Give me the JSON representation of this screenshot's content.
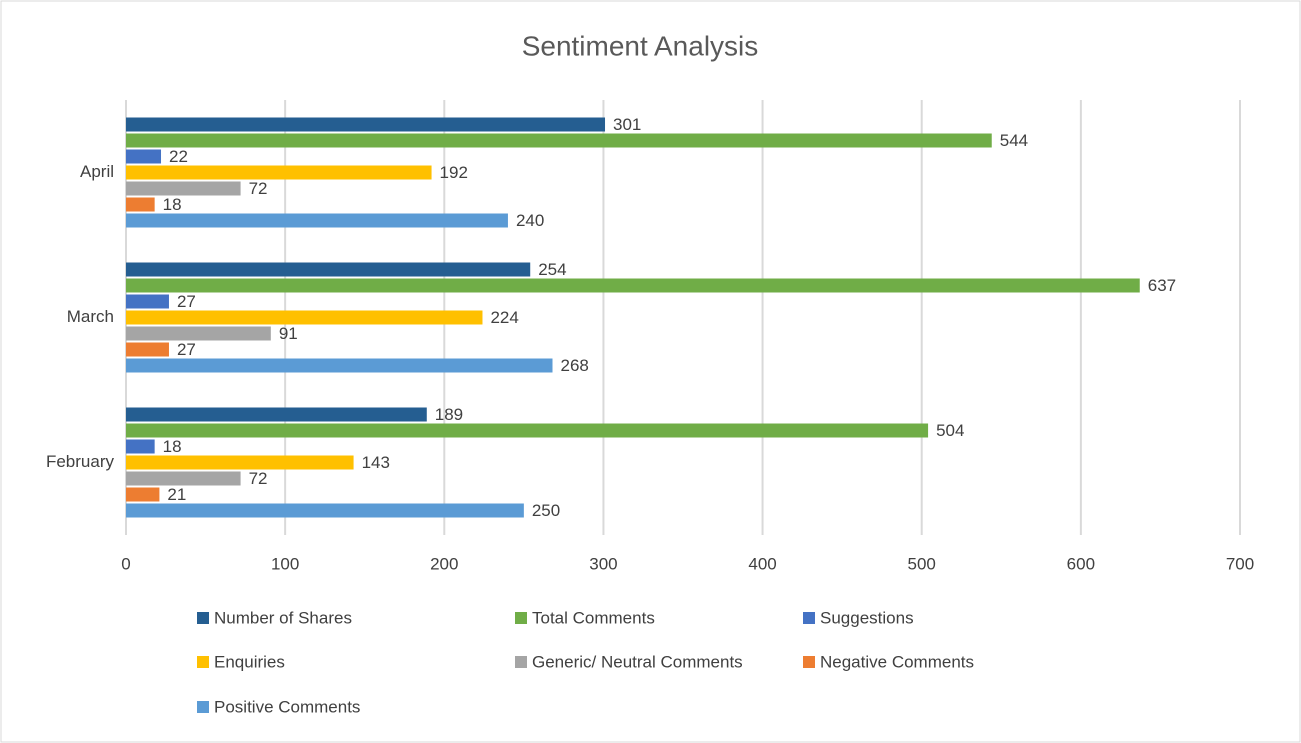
{
  "chart_data": {
    "type": "hbar",
    "title": "Sentiment Analysis",
    "categories": [
      "February",
      "March",
      "April"
    ],
    "series": [
      {
        "name": "Number of Shares",
        "color": "#255e91",
        "values": [
          189,
          254,
          301
        ]
      },
      {
        "name": "Total Comments",
        "color": "#70ad47",
        "values": [
          504,
          637,
          544
        ]
      },
      {
        "name": "Suggestions",
        "color": "#4472c4",
        "values": [
          18,
          27,
          22
        ]
      },
      {
        "name": "Enquiries",
        "color": "#ffc000",
        "values": [
          143,
          224,
          192
        ]
      },
      {
        "name": "Generic/ Neutral Comments",
        "color": "#a5a5a5",
        "values": [
          72,
          91,
          72
        ]
      },
      {
        "name": "Negative Comments",
        "color": "#ed7d31",
        "values": [
          21,
          27,
          18
        ]
      },
      {
        "name": "Positive Comments",
        "color": "#5b9bd5",
        "values": [
          250,
          268,
          240
        ]
      }
    ],
    "xlim": [
      0,
      700
    ],
    "xticks": [
      0,
      100,
      200,
      300,
      400,
      500,
      600,
      700
    ],
    "grid": true,
    "legend": "bottom"
  }
}
